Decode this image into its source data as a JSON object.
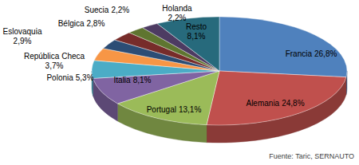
{
  "chart_data": {
    "type": "pie",
    "categories": [
      "Francia",
      "Alemania",
      "Portugal",
      "Italia",
      "Polonia",
      "República Checa",
      "Eslovaquia",
      "Bélgica",
      "Suecia",
      "Holanda",
      "Resto"
    ],
    "values": [
      26.8,
      24.8,
      13.1,
      8.1,
      5.3,
      3.7,
      2.9,
      2.8,
      2.2,
      2.2,
      8.1
    ],
    "value_labels": [
      "26,8%",
      "24,8%",
      "13,1%",
      "8,1%",
      "5,3%",
      "3,7%",
      "2,9%",
      "2,8%",
      "2,2%",
      "2,2%",
      "8,1%"
    ],
    "colors": [
      "#4f81bd",
      "#c0504d",
      "#9bbb59",
      "#8064a2",
      "#4bacc6",
      "#f79646",
      "#2c4d75",
      "#772c2a",
      "#5f7530",
      "#4d3b62",
      "#276a7c"
    ],
    "data_labels": true,
    "annotation": "Fuente: Taric, SERNAUTO"
  }
}
